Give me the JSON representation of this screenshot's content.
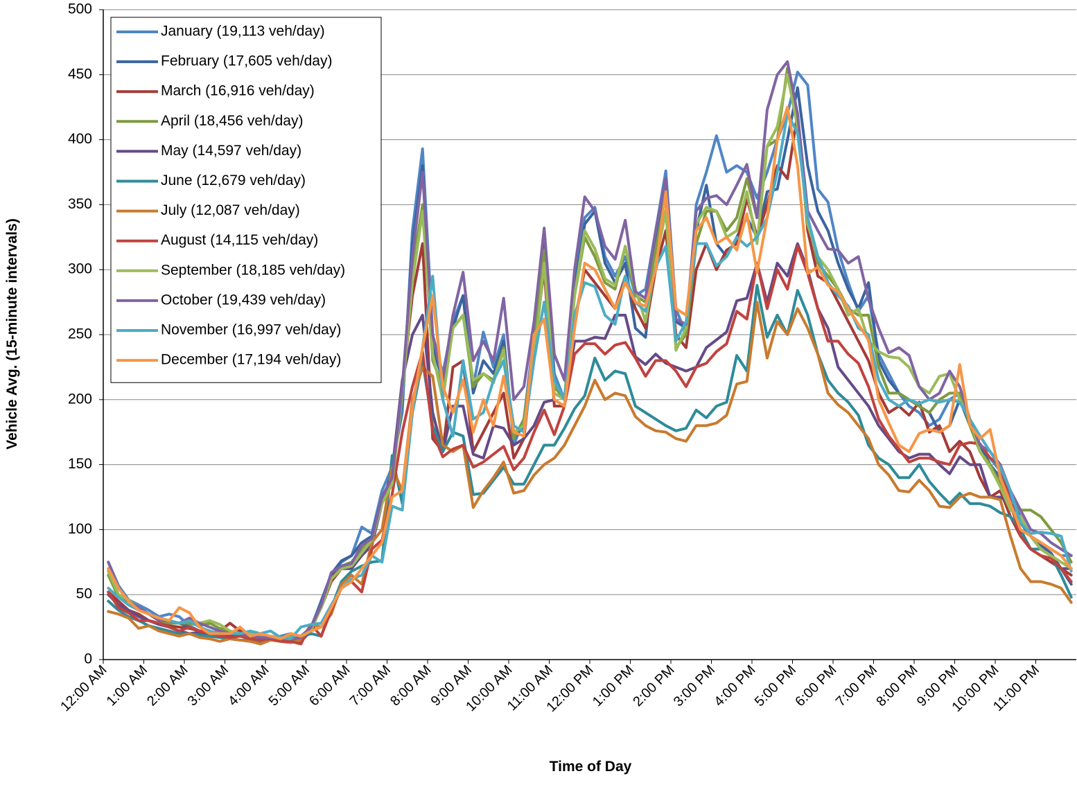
{
  "chart_data": {
    "type": "line",
    "x_label": "Time of Day",
    "y_label": "Vehicle Avg. (15-minute intervals)",
    "ylim": [
      0,
      500
    ],
    "yticks": [
      0,
      50,
      100,
      150,
      200,
      250,
      300,
      350,
      400,
      450,
      500
    ],
    "grid": true,
    "legend": "upper left",
    "categories": [
      "12:00 AM",
      null,
      null,
      null,
      "1:00 AM",
      null,
      null,
      null,
      "2:00 AM",
      null,
      null,
      null,
      "3:00 AM",
      null,
      null,
      null,
      "4:00 AM",
      null,
      null,
      null,
      "5:00 AM",
      null,
      null,
      null,
      "6:00 AM",
      null,
      null,
      null,
      "7:00 AM",
      null,
      null,
      null,
      "8:00 AM",
      null,
      null,
      null,
      "9:00 AM",
      null,
      null,
      null,
      "10:00 AM",
      null,
      null,
      null,
      "11:00 AM",
      null,
      null,
      null,
      "12:00 PM",
      null,
      null,
      null,
      "1:00 PM",
      null,
      null,
      null,
      "2:00 PM",
      null,
      null,
      null,
      "3:00 PM",
      null,
      null,
      null,
      "4:00 PM",
      null,
      null,
      null,
      "5:00 PM",
      null,
      null,
      null,
      "6:00 PM",
      null,
      null,
      null,
      "7:00 PM",
      null,
      null,
      null,
      "8:00 PM",
      null,
      null,
      null,
      "9:00 PM",
      null,
      null,
      null,
      "10:00 PM",
      null,
      null,
      null,
      "11:00 PM",
      null,
      null,
      null
    ],
    "series": [
      {
        "name": "January (19,113 veh/day)",
        "color": "#4f86c6",
        "values": [
          75,
          57,
          46,
          42,
          38,
          33,
          35,
          33,
          26,
          22,
          20,
          22,
          20,
          22,
          18,
          16,
          16,
          18,
          20,
          18,
          25,
          45,
          65,
          75,
          80,
          102,
          97,
          130,
          148,
          190,
          330,
          393,
          250,
          220,
          260,
          280,
          210,
          252,
          225,
          250,
          165,
          185,
          250,
          330,
          220,
          200,
          290,
          340,
          348,
          310,
          295,
          310,
          280,
          285,
          330,
          376,
          270,
          250,
          350,
          375,
          403,
          375,
          380,
          375,
          355,
          375,
          400,
          420,
          452,
          442,
          362,
          352,
          315,
          290,
          268,
          280,
          235,
          220,
          205,
          195,
          190,
          180,
          185,
          200,
          205,
          185,
          165,
          155,
          145,
          125,
          110,
          95,
          90,
          85,
          80,
          80
        ]
      },
      {
        "name": "February (17,605 veh/day)",
        "color": "#3a64a0",
        "values": [
          70,
          55,
          45,
          40,
          35,
          32,
          30,
          28,
          25,
          22,
          20,
          20,
          18,
          20,
          18,
          17,
          16,
          17,
          18,
          17,
          22,
          45,
          66,
          76,
          80,
          90,
          95,
          125,
          140,
          200,
          320,
          380,
          240,
          215,
          255,
          280,
          205,
          230,
          220,
          245,
          170,
          180,
          245,
          325,
          215,
          200,
          285,
          335,
          345,
          305,
          290,
          305,
          255,
          248,
          320,
          370,
          260,
          255,
          330,
          365,
          320,
          310,
          325,
          340,
          325,
          360,
          362,
          400,
          440,
          380,
          345,
          330,
          305,
          285,
          270,
          290,
          230,
          215,
          205,
          200,
          195,
          190,
          175,
          180,
          200,
          180,
          165,
          150,
          140,
          120,
          105,
          95,
          88,
          82,
          70,
          58
        ]
      },
      {
        "name": "March (16,916 veh/day)",
        "color": "#a33b38",
        "values": [
          52,
          45,
          38,
          35,
          30,
          28,
          26,
          25,
          24,
          22,
          20,
          22,
          28,
          22,
          20,
          18,
          18,
          17,
          15,
          15,
          24,
          40,
          60,
          70,
          70,
          85,
          90,
          125,
          140,
          210,
          280,
          320,
          170,
          160,
          225,
          230,
          160,
          175,
          190,
          205,
          155,
          170,
          240,
          300,
          195,
          195,
          260,
          300,
          290,
          280,
          270,
          295,
          270,
          255,
          300,
          330,
          250,
          240,
          300,
          320,
          300,
          315,
          320,
          355,
          325,
          350,
          380,
          370,
          420,
          330,
          295,
          290,
          275,
          260,
          245,
          230,
          205,
          190,
          195,
          188,
          198,
          175,
          180,
          160,
          168,
          160,
          140,
          125,
          130,
          110,
          95,
          85,
          80,
          75,
          70,
          65
        ]
      },
      {
        "name": "April (18,456 veh/day)",
        "color": "#7f9a41",
        "values": [
          65,
          48,
          45,
          40,
          35,
          30,
          28,
          28,
          28,
          26,
          28,
          24,
          22,
          20,
          18,
          18,
          17,
          16,
          18,
          17,
          22,
          42,
          64,
          72,
          75,
          85,
          92,
          122,
          140,
          210,
          300,
          350,
          230,
          210,
          255,
          265,
          210,
          220,
          215,
          240,
          170,
          185,
          240,
          315,
          210,
          200,
          280,
          325,
          310,
          290,
          285,
          318,
          280,
          275,
          315,
          358,
          240,
          250,
          320,
          345,
          345,
          330,
          340,
          370,
          340,
          395,
          400,
          455,
          420,
          340,
          305,
          295,
          285,
          270,
          265,
          265,
          225,
          205,
          205,
          200,
          195,
          190,
          200,
          205,
          205,
          180,
          160,
          150,
          135,
          120,
          115,
          115,
          110,
          100,
          90,
          75
        ]
      },
      {
        "name": "May (14,597 veh/day)",
        "color": "#654a87",
        "values": [
          50,
          42,
          38,
          33,
          30,
          27,
          25,
          22,
          20,
          21,
          20,
          18,
          18,
          20,
          17,
          15,
          15,
          15,
          14,
          14,
          22,
          42,
          65,
          70,
          70,
          80,
          88,
          120,
          145,
          215,
          250,
          265,
          190,
          160,
          195,
          195,
          158,
          155,
          180,
          178,
          165,
          170,
          180,
          198,
          200,
          195,
          245,
          245,
          248,
          247,
          265,
          265,
          233,
          227,
          235,
          228,
          225,
          222,
          225,
          240,
          246,
          252,
          276,
          278,
          305,
          275,
          305,
          295,
          320,
          300,
          270,
          255,
          225,
          215,
          205,
          195,
          180,
          170,
          160,
          155,
          158,
          158,
          150,
          143,
          156,
          150,
          150,
          125,
          125,
          120,
          110,
          95,
          85,
          80,
          70,
          70
        ]
      },
      {
        "name": "June (12,679 veh/day)",
        "color": "#2e8b9a",
        "values": [
          45,
          38,
          33,
          30,
          26,
          24,
          22,
          20,
          20,
          19,
          18,
          17,
          16,
          15,
          15,
          14,
          16,
          15,
          15,
          17,
          20,
          18,
          40,
          60,
          68,
          72,
          75,
          76,
          157,
          120,
          190,
          230,
          180,
          160,
          175,
          172,
          127,
          128,
          138,
          148,
          135,
          135,
          150,
          165,
          165,
          178,
          193,
          203,
          232,
          215,
          222,
          220,
          195,
          190,
          185,
          180,
          176,
          178,
          192,
          186,
          195,
          198,
          234,
          222,
          288,
          248,
          265,
          250,
          284,
          265,
          235,
          215,
          205,
          198,
          188,
          165,
          155,
          150,
          140,
          140,
          150,
          137,
          128,
          120,
          128,
          120,
          120,
          118,
          113,
          110,
          100,
          85,
          85,
          80,
          65,
          48
        ]
      },
      {
        "name": "July (12,087 veh/day)",
        "color": "#c97a2e",
        "values": [
          37,
          35,
          32,
          24,
          26,
          22,
          20,
          18,
          20,
          17,
          16,
          14,
          16,
          15,
          14,
          12,
          15,
          14,
          13,
          15,
          27,
          25,
          35,
          58,
          65,
          58,
          90,
          100,
          148,
          130,
          200,
          225,
          218,
          165,
          160,
          165,
          117,
          130,
          140,
          152,
          128,
          130,
          142,
          150,
          155,
          165,
          180,
          195,
          215,
          200,
          205,
          203,
          187,
          180,
          176,
          175,
          170,
          168,
          180,
          180,
          182,
          188,
          212,
          214,
          275,
          232,
          260,
          250,
          270,
          255,
          235,
          205,
          196,
          190,
          180,
          170,
          150,
          142,
          130,
          129,
          138,
          130,
          118,
          117,
          125,
          128,
          125,
          125,
          123,
          95,
          70,
          60,
          60,
          58,
          55,
          44
        ]
      },
      {
        "name": "August (14,115 veh/day)",
        "color": "#c0433f",
        "values": [
          52,
          40,
          36,
          30,
          30,
          28,
          25,
          22,
          25,
          22,
          20,
          18,
          17,
          18,
          16,
          15,
          16,
          14,
          14,
          12,
          27,
          18,
          38,
          55,
          60,
          52,
          85,
          92,
          127,
          175,
          210,
          237,
          175,
          156,
          162,
          165,
          148,
          152,
          158,
          164,
          146,
          155,
          175,
          192,
          173,
          195,
          235,
          243,
          243,
          235,
          242,
          244,
          232,
          218,
          230,
          230,
          222,
          210,
          225,
          228,
          237,
          243,
          268,
          262,
          305,
          270,
          300,
          285,
          318,
          297,
          270,
          245,
          245,
          235,
          228,
          210,
          185,
          172,
          162,
          152,
          155,
          155,
          152,
          150,
          165,
          167,
          166,
          155,
          150,
          120,
          95,
          85,
          80,
          78,
          70,
          60
        ]
      },
      {
        "name": "September (18,185 veh/day)",
        "color": "#9bbb59",
        "values": [
          68,
          50,
          46,
          40,
          35,
          32,
          30,
          28,
          30,
          28,
          30,
          27,
          22,
          20,
          20,
          18,
          18,
          17,
          17,
          17,
          23,
          40,
          62,
          70,
          72,
          82,
          92,
          120,
          135,
          205,
          290,
          345,
          235,
          200,
          255,
          265,
          215,
          220,
          213,
          238,
          175,
          180,
          230,
          305,
          205,
          200,
          280,
          330,
          316,
          293,
          288,
          318,
          285,
          260,
          305,
          345,
          238,
          255,
          335,
          348,
          345,
          325,
          330,
          360,
          320,
          395,
          410,
          450,
          410,
          335,
          310,
          300,
          285,
          265,
          270,
          245,
          237,
          233,
          232,
          225,
          210,
          205,
          218,
          220,
          200,
          185,
          160,
          148,
          133,
          115,
          110,
          95,
          85,
          80,
          75,
          70
        ]
      },
      {
        "name": "October (19,439 veh/day)",
        "color": "#8064a2",
        "values": [
          75,
          55,
          45,
          40,
          35,
          30,
          30,
          28,
          32,
          28,
          25,
          22,
          20,
          20,
          18,
          17,
          17,
          16,
          16,
          17,
          25,
          42,
          67,
          72,
          74,
          88,
          93,
          125,
          140,
          210,
          310,
          375,
          250,
          215,
          265,
          298,
          230,
          245,
          230,
          278,
          200,
          210,
          260,
          332,
          235,
          215,
          300,
          356,
          345,
          318,
          308,
          338,
          283,
          278,
          330,
          370,
          262,
          258,
          345,
          355,
          357,
          350,
          365,
          381,
          340,
          423,
          450,
          460,
          420,
          345,
          330,
          316,
          315,
          305,
          310,
          277,
          255,
          236,
          240,
          234,
          210,
          200,
          205,
          222,
          210,
          185,
          165,
          160,
          150,
          130,
          115,
          100,
          97,
          90,
          85,
          80
        ]
      },
      {
        "name": "November (16,997 veh/day)",
        "color": "#4bacc6",
        "values": [
          55,
          48,
          42,
          38,
          35,
          32,
          30,
          28,
          30,
          25,
          22,
          20,
          20,
          20,
          22,
          20,
          22,
          17,
          16,
          25,
          27,
          28,
          42,
          55,
          62,
          65,
          80,
          75,
          118,
          115,
          190,
          240,
          295,
          200,
          172,
          230,
          185,
          190,
          215,
          230,
          180,
          175,
          230,
          275,
          215,
          200,
          265,
          290,
          287,
          265,
          258,
          295,
          275,
          268,
          302,
          318,
          245,
          260,
          320,
          320,
          303,
          310,
          325,
          318,
          325,
          340,
          375,
          420,
          405,
          340,
          310,
          290,
          280,
          272,
          255,
          250,
          215,
          200,
          195,
          200,
          197,
          200,
          198,
          200,
          198,
          185,
          172,
          160,
          148,
          130,
          105,
          97,
          98,
          97,
          95,
          68
        ]
      },
      {
        "name": "December (17,194 veh/day)",
        "color": "#f79646",
        "values": [
          70,
          55,
          45,
          38,
          35,
          32,
          30,
          40,
          36,
          25,
          20,
          20,
          20,
          25,
          18,
          20,
          18,
          16,
          20,
          18,
          22,
          25,
          40,
          55,
          60,
          70,
          80,
          90,
          125,
          130,
          195,
          240,
          280,
          210,
          190,
          215,
          175,
          200,
          180,
          218,
          175,
          172,
          250,
          262,
          200,
          195,
          255,
          305,
          300,
          285,
          270,
          290,
          275,
          272,
          300,
          360,
          270,
          265,
          330,
          340,
          320,
          325,
          315,
          343,
          298,
          340,
          400,
          425,
          380,
          297,
          302,
          288,
          283,
          270,
          258,
          246,
          200,
          182,
          165,
          160,
          174,
          177,
          175,
          180,
          227,
          180,
          170,
          177,
          140,
          120,
          100,
          95,
          90,
          85,
          80,
          70
        ]
      }
    ]
  }
}
